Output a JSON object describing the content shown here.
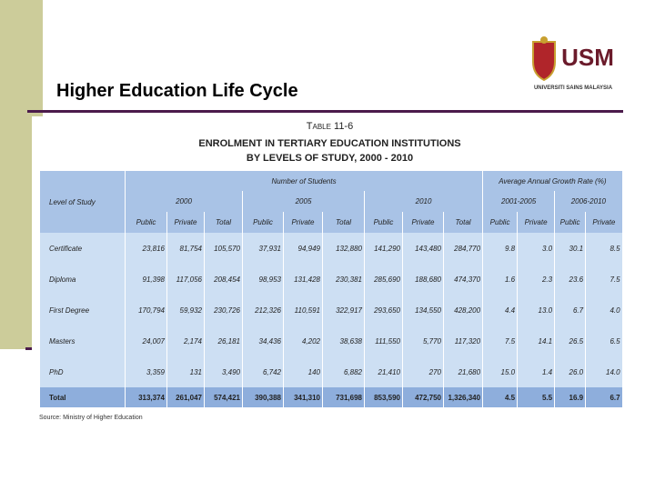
{
  "title": "Higher Education Life Cycle",
  "logo": {
    "mark": "USM",
    "name": "UNIVERSITI SAINS MALAYSIA"
  },
  "table": {
    "number": "Table 11-6",
    "heading": [
      "ENROLMENT IN TERTIARY EDUCATION INSTITUTIONS",
      "BY LEVELS OF STUDY, 2000 - 2010"
    ],
    "row_header": "Level of Study",
    "group_headers": [
      "Number of Students",
      "Average Annual Growth Rate (%)"
    ],
    "periods": [
      "2000",
      "2005",
      "2010",
      "2001-2005",
      "2006-2010"
    ],
    "subheaders": [
      "Public",
      "Private",
      "Total",
      "Public",
      "Private",
      "Total",
      "Public",
      "Private",
      "Total",
      "Public",
      "Private",
      "Public",
      "Private"
    ],
    "rows": [
      [
        "Certificate",
        "23,816",
        "81,754",
        "105,570",
        "37,931",
        "94,949",
        "132,880",
        "141,290",
        "143,480",
        "284,770",
        "9.8",
        "3.0",
        "30.1",
        "8.5"
      ],
      [
        "Diploma",
        "91,398",
        "117,056",
        "208,454",
        "98,953",
        "131,428",
        "230,381",
        "285,690",
        "188,680",
        "474,370",
        "1.6",
        "2.3",
        "23.6",
        "7.5"
      ],
      [
        "First Degree",
        "170,794",
        "59,932",
        "230,726",
        "212,326",
        "110,591",
        "322,917",
        "293,650",
        "134,550",
        "428,200",
        "4.4",
        "13.0",
        "6.7",
        "4.0"
      ],
      [
        "Masters",
        "24,007",
        "2,174",
        "26,181",
        "34,436",
        "4,202",
        "38,638",
        "111,550",
        "5,770",
        "117,320",
        "7.5",
        "14.1",
        "26.5",
        "6.5"
      ],
      [
        "PhD",
        "3,359",
        "131",
        "3,490",
        "6,742",
        "140",
        "6,882",
        "21,410",
        "270",
        "21,680",
        "15.0",
        "1.4",
        "26.0",
        "14.0"
      ],
      [
        "Total",
        "313,374",
        "261,047",
        "574,421",
        "390,388",
        "341,310",
        "731,698",
        "853,590",
        "472,750",
        "1,326,340",
        "4.5",
        "5.5",
        "16.9",
        "6.7"
      ]
    ],
    "source": "Source: Ministry of Higher Education"
  }
}
